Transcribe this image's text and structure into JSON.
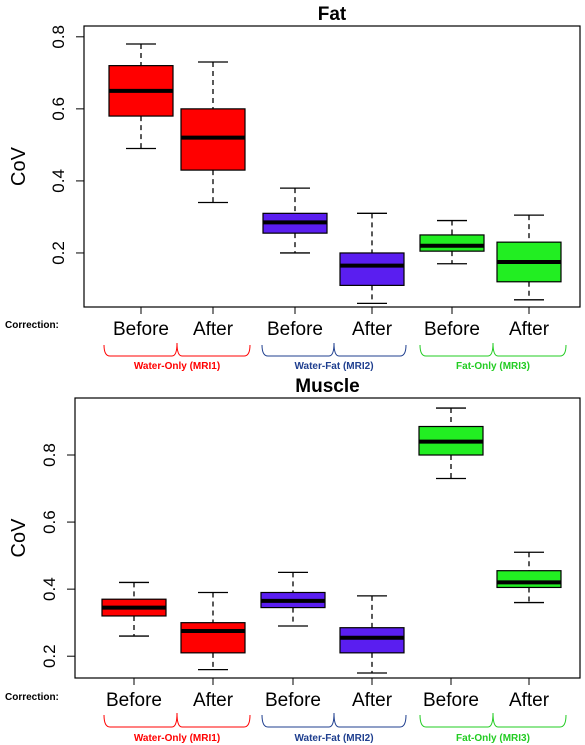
{
  "correction_label": "Correction:",
  "groups": [
    {
      "label": "Water-Only (MRI1)",
      "color": "#ff0000"
    },
    {
      "label": "Water-Fat (MRI2)",
      "color": "#1f3f8f"
    },
    {
      "label": "Fat-Only (MRI3)",
      "color": "#22cc22"
    }
  ],
  "box_colors": [
    "#ff0000",
    "#ff0000",
    "#5a1ef0",
    "#5a1ef0",
    "#22ee22",
    "#22ee22"
  ],
  "chart_data": [
    {
      "type": "box",
      "title": "Fat",
      "ylabel": "CoV",
      "ylim": [
        0.05,
        0.83
      ],
      "yticks": [
        "0.2",
        "0.4",
        "0.6",
        "0.8"
      ],
      "categories": [
        "Before",
        "After",
        "Before",
        "After",
        "Before",
        "After"
      ],
      "boxes": [
        {
          "min": 0.49,
          "q1": 0.58,
          "median": 0.65,
          "q3": 0.72,
          "max": 0.78
        },
        {
          "min": 0.34,
          "q1": 0.43,
          "median": 0.52,
          "q3": 0.6,
          "max": 0.73
        },
        {
          "min": 0.2,
          "q1": 0.255,
          "median": 0.285,
          "q3": 0.31,
          "max": 0.38
        },
        {
          "min": 0.06,
          "q1": 0.11,
          "median": 0.165,
          "q3": 0.2,
          "max": 0.31
        },
        {
          "min": 0.17,
          "q1": 0.205,
          "median": 0.22,
          "q3": 0.25,
          "max": 0.29
        },
        {
          "min": 0.07,
          "q1": 0.12,
          "median": 0.175,
          "q3": 0.23,
          "max": 0.305
        }
      ]
    },
    {
      "type": "box",
      "title": "Muscle",
      "ylabel": "CoV",
      "ylim": [
        0.135,
        0.97
      ],
      "yticks": [
        "0.2",
        "0.4",
        "0.6",
        "0.8"
      ],
      "categories": [
        "Before",
        "After",
        "Before",
        "After",
        "Before",
        "After"
      ],
      "boxes": [
        {
          "min": 0.26,
          "q1": 0.32,
          "median": 0.345,
          "q3": 0.37,
          "max": 0.42
        },
        {
          "min": 0.16,
          "q1": 0.21,
          "median": 0.275,
          "q3": 0.3,
          "max": 0.39
        },
        {
          "min": 0.29,
          "q1": 0.345,
          "median": 0.365,
          "q3": 0.39,
          "max": 0.45
        },
        {
          "min": 0.15,
          "q1": 0.21,
          "median": 0.255,
          "q3": 0.285,
          "max": 0.38
        },
        {
          "min": 0.73,
          "q1": 0.8,
          "median": 0.84,
          "q3": 0.885,
          "max": 0.94
        },
        {
          "min": 0.36,
          "q1": 0.405,
          "median": 0.42,
          "q3": 0.455,
          "max": 0.51
        }
      ]
    }
  ]
}
